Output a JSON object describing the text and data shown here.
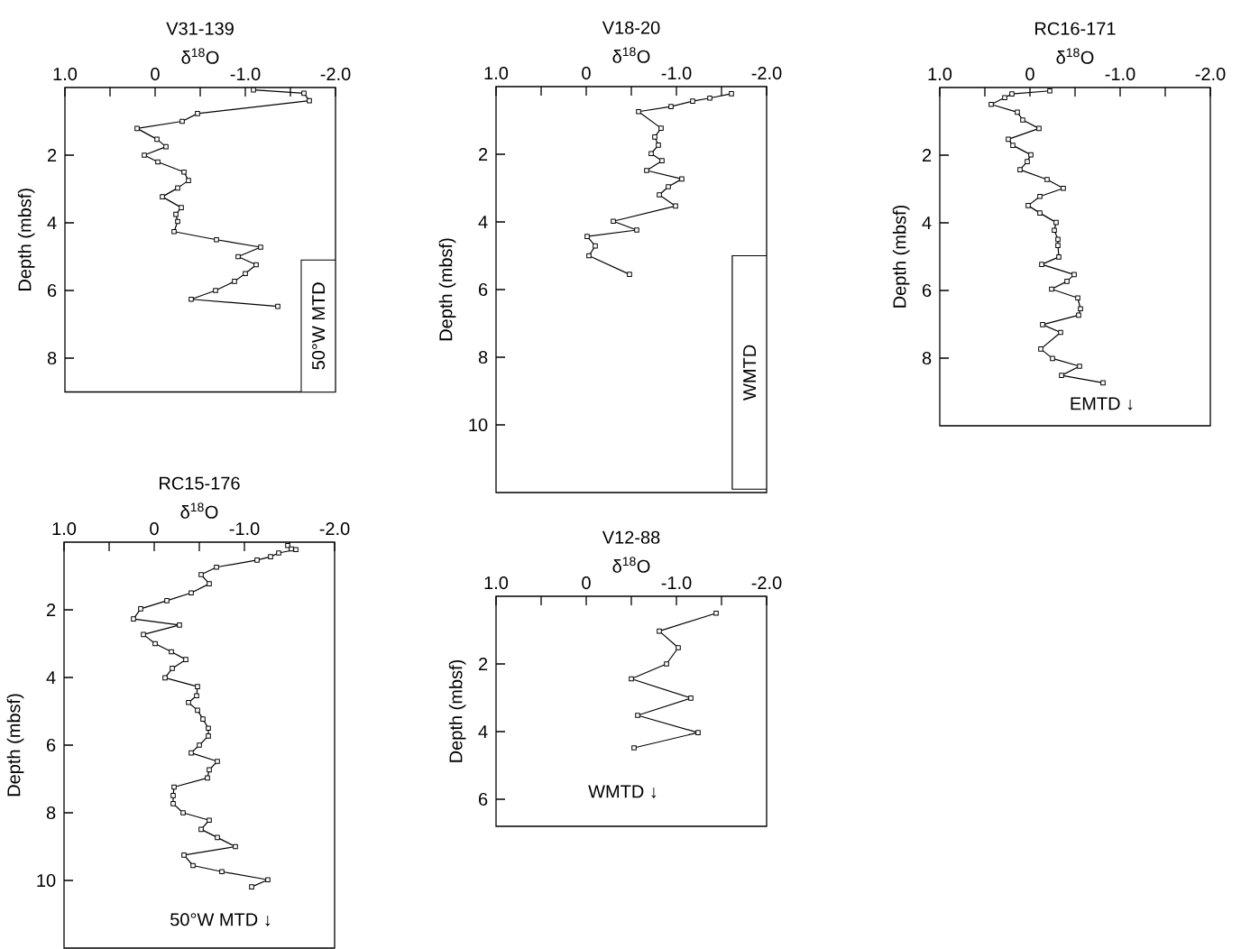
{
  "chart_data": [
    {
      "type": "line",
      "title": "V31-139",
      "xlabel": "δ$^{18}$O",
      "ylabel": "Depth (mbsf)",
      "color": "#000000",
      "marker": "square",
      "line_style": "solid",
      "xlim": [
        1.0,
        -2.0
      ],
      "ylim": [
        9,
        0
      ],
      "xticks": [
        {
          "value": 1.0,
          "label": "1.0"
        },
        {
          "value": 0.5,
          "label": null
        },
        0,
        {
          "value": -0.5,
          "label": null
        },
        {
          "value": -1.0,
          "label": "-1.0"
        },
        {
          "value": -1.5,
          "label": null
        },
        {
          "value": -2.0,
          "label": "-2.0"
        }
      ],
      "yticks": [
        2,
        4,
        6,
        8
      ],
      "bands": [
        {
          "axis": "y",
          "from": 5.1,
          "to": 9,
          "label": "50°W MTD",
          "color": "#ffffff"
        }
      ],
      "x": [
        -1.09,
        -1.65,
        -1.71,
        -0.47,
        -0.3,
        0.2,
        -0.02,
        -0.12,
        0.12,
        -0.03,
        -0.32,
        -0.37,
        -0.25,
        -0.08,
        -0.29,
        -0.23,
        -0.25,
        -0.21,
        -0.68,
        -1.17,
        -0.92,
        -1.12,
        -1.0,
        -0.88,
        -0.67,
        -0.4,
        -1.36
      ],
      "values": [
        0.07,
        0.17,
        0.39,
        0.77,
        1.0,
        1.21,
        1.53,
        1.75,
        2.0,
        2.2,
        2.5,
        2.75,
        2.97,
        3.23,
        3.55,
        3.75,
        3.96,
        4.26,
        4.5,
        4.72,
        5.0,
        5.24,
        5.5,
        5.73,
        6.0,
        6.26,
        6.47
      ]
    },
    {
      "type": "line",
      "title": "V18-20",
      "xlabel": "δ$^{18}$O",
      "ylabel": "Depth (mbsf)",
      "color": "#000000",
      "marker": "square",
      "line_style": "solid",
      "xlim": [
        1.0,
        -2.0
      ],
      "ylim": [
        12,
        0
      ],
      "xticks": [
        {
          "value": 1.0,
          "label": "1.0"
        },
        {
          "value": 0.5,
          "label": null
        },
        0,
        {
          "value": -0.5,
          "label": null
        },
        {
          "value": -1.0,
          "label": "-1.0"
        },
        {
          "value": -1.5,
          "label": null
        },
        {
          "value": -2.0,
          "label": "-2.0"
        }
      ],
      "yticks": [
        2,
        4,
        6,
        8,
        10
      ],
      "bands": [
        {
          "axis": "y",
          "from": 5.0,
          "to": 11.9,
          "label": "WMTD",
          "color": "#ffffff"
        }
      ],
      "x": [
        -1.61,
        -1.37,
        -1.18,
        -0.94,
        -0.58,
        -0.83,
        -0.76,
        -0.8,
        -0.72,
        -0.84,
        -0.67,
        -1.06,
        -0.91,
        -0.81,
        -0.99,
        -0.3,
        -0.56,
        -0.01,
        -0.1,
        -0.03,
        -0.48
      ],
      "values": [
        0.21,
        0.34,
        0.43,
        0.59,
        0.74,
        1.23,
        1.49,
        1.73,
        1.98,
        2.19,
        2.48,
        2.73,
        2.96,
        3.2,
        3.53,
        3.98,
        4.24,
        4.43,
        4.71,
        5.0,
        5.55
      ]
    },
    {
      "type": "line",
      "title": "RC16-171",
      "xlabel": "δ$^{18}$O",
      "ylabel": "Depth (mbsf)",
      "color": "#000000",
      "marker": "square",
      "line_style": "solid",
      "xlim": [
        1.0,
        -2.0
      ],
      "ylim": [
        10,
        0
      ],
      "xticks": [
        {
          "value": 1.0,
          "label": "1.0"
        },
        {
          "value": 0.5,
          "label": null
        },
        0,
        {
          "value": -0.5,
          "label": null
        },
        {
          "value": -1.0,
          "label": "-1.0"
        },
        {
          "value": -1.5,
          "label": null
        },
        {
          "value": -2.0,
          "label": "-2.0"
        }
      ],
      "yticks": [
        2,
        4,
        6,
        8
      ],
      "annotations": [
        "EMTD ↓"
      ],
      "x": [
        -0.22,
        0.2,
        0.28,
        0.43,
        0.14,
        0.08,
        -0.1,
        0.24,
        0.19,
        -0.01,
        0.03,
        0.11,
        -0.19,
        -0.37,
        -0.11,
        0.02,
        -0.11,
        -0.29,
        -0.27,
        -0.31,
        -0.31,
        -0.32,
        -0.13,
        -0.49,
        -0.41,
        -0.24,
        -0.53,
        -0.56,
        -0.54,
        -0.14,
        -0.34,
        -0.12,
        -0.25,
        -0.55,
        -0.35,
        -0.81
      ],
      "values": [
        0.1,
        0.19,
        0.3,
        0.5,
        0.73,
        0.96,
        1.21,
        1.53,
        1.71,
        1.99,
        2.19,
        2.43,
        2.72,
        2.98,
        3.22,
        3.49,
        3.71,
        3.99,
        4.22,
        4.49,
        4.67,
        5.01,
        5.23,
        5.53,
        5.73,
        5.96,
        6.22,
        6.54,
        6.73,
        7.01,
        7.24,
        7.73,
        8.01,
        8.24,
        8.51,
        8.73
      ]
    },
    {
      "type": "line",
      "title": "RC15-176",
      "xlabel": "δ$^{18}$O",
      "ylabel": "Depth (mbsf)",
      "color": "#000000",
      "marker": "square",
      "line_style": "solid",
      "xlim": [
        1.0,
        -2.0
      ],
      "ylim": [
        12,
        0
      ],
      "xticks": [
        {
          "value": 1.0,
          "label": "1.0"
        },
        {
          "value": 0.5,
          "label": null
        },
        0,
        {
          "value": -0.5,
          "label": null
        },
        {
          "value": -1.0,
          "label": "-1.0"
        },
        {
          "value": -1.5,
          "label": null
        },
        {
          "value": -2.0,
          "label": "-2.0"
        }
      ],
      "yticks": [
        2,
        4,
        6,
        8,
        10
      ],
      "annotations": [
        "50°W MTD ↓"
      ],
      "x": [
        -1.48,
        -1.52,
        -1.57,
        -1.38,
        -1.29,
        -1.14,
        -0.69,
        -0.52,
        -0.61,
        -0.41,
        -0.14,
        0.15,
        0.23,
        -0.28,
        0.12,
        -0.01,
        -0.19,
        -0.35,
        -0.2,
        -0.12,
        -0.48,
        -0.47,
        -0.38,
        -0.48,
        -0.54,
        -0.6,
        -0.6,
        -0.5,
        -0.41,
        -0.7,
        -0.61,
        -0.59,
        -0.22,
        -0.21,
        -0.21,
        -0.32,
        -0.61,
        -0.52,
        -0.7,
        -0.9,
        -0.33,
        -0.43,
        -0.75,
        -1.26,
        -1.08
      ],
      "values": [
        0.1,
        0.2,
        0.22,
        0.32,
        0.43,
        0.53,
        0.74,
        0.96,
        1.23,
        1.5,
        1.73,
        1.97,
        2.27,
        2.45,
        2.73,
        3.0,
        3.24,
        3.47,
        3.73,
        4.01,
        4.27,
        4.54,
        4.74,
        4.97,
        5.23,
        5.5,
        5.73,
        6.0,
        6.23,
        6.48,
        6.73,
        6.97,
        7.24,
        7.49,
        7.73,
        8.0,
        8.22,
        8.49,
        8.73,
        9.0,
        9.25,
        9.56,
        9.74,
        9.98,
        10.19
      ]
    },
    {
      "type": "line",
      "title": "V12-88",
      "xlabel": "δ$^{18}$O",
      "ylabel": "Depth (mbsf)",
      "color": "#000000",
      "marker": "square",
      "line_style": "solid",
      "xlim": [
        1.0,
        -2.0
      ],
      "ylim": [
        6.8,
        0
      ],
      "xticks": [
        {
          "value": 1.0,
          "label": "1.0"
        },
        {
          "value": 0.5,
          "label": null
        },
        0,
        {
          "value": -0.5,
          "label": null
        },
        {
          "value": -1.0,
          "label": "-1.0"
        },
        {
          "value": -1.5,
          "label": null
        },
        {
          "value": -2.0,
          "label": "-2.0"
        }
      ],
      "yticks": [
        2,
        4,
        6
      ],
      "annotations": [
        "WMTD ↓"
      ],
      "x": [
        -1.44,
        -0.81,
        -1.02,
        -0.89,
        -0.5,
        -1.16,
        -0.57,
        -1.24,
        -0.53
      ],
      "values": [
        0.5,
        1.03,
        1.52,
        2.0,
        2.44,
        3.01,
        3.52,
        4.03,
        4.48
      ]
    }
  ]
}
